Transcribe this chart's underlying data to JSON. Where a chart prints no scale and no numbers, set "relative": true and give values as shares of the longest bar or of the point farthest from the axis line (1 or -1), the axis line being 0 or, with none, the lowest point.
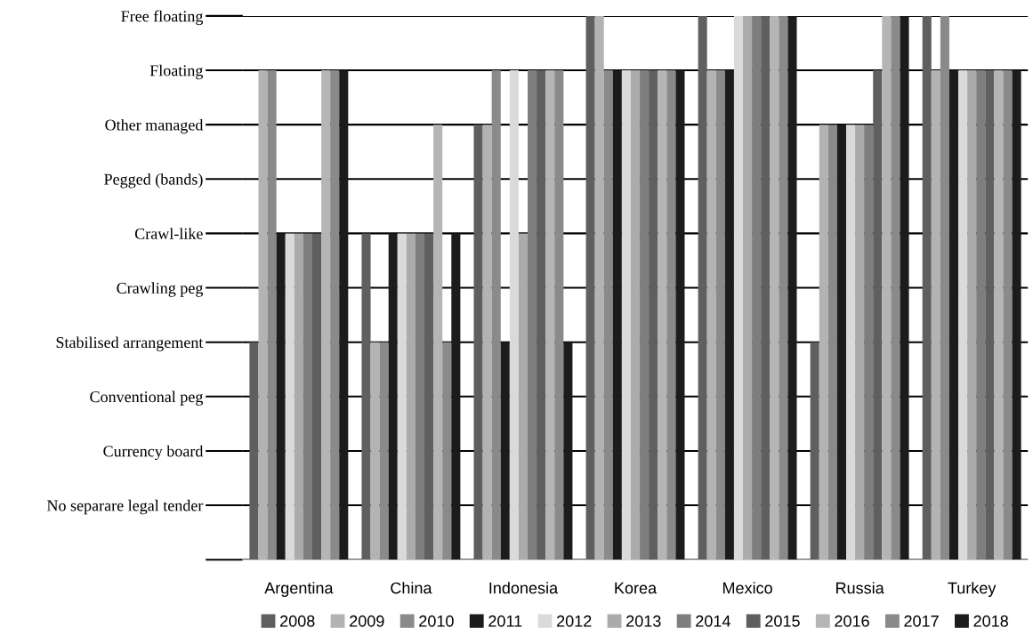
{
  "chart_data": {
    "type": "bar",
    "categories": [
      "Argentina",
      "China",
      "Indonesia",
      "Korea",
      "Mexico",
      "Russia",
      "Turkey"
    ],
    "series": [
      {
        "name": "2008",
        "color": "#5f5f5f",
        "values": [
          0.4,
          0.6,
          0.8,
          1,
          1,
          0.4,
          1
        ]
      },
      {
        "name": "2009",
        "color": "#b3b3b3",
        "values": [
          0.9,
          0.4,
          0.8,
          1,
          0.9,
          0.8,
          0.9
        ]
      },
      {
        "name": "2010",
        "color": "#8a8a8a",
        "values": [
          0.9,
          0.4,
          0.9,
          0.9,
          0.9,
          0.8,
          1
        ]
      },
      {
        "name": "2011",
        "color": "#1c1c1c",
        "values": [
          0.6,
          0.6,
          0.4,
          0.9,
          0.9,
          0.8,
          0.9
        ]
      },
      {
        "name": "2012",
        "color": "#dadada",
        "values": [
          0.6,
          0.6,
          0.9,
          0.9,
          1,
          0.8,
          0.9
        ]
      },
      {
        "name": "2013",
        "color": "#ababab",
        "values": [
          0.6,
          0.6,
          0.6,
          0.9,
          1,
          0.8,
          0.9
        ]
      },
      {
        "name": "2014",
        "color": "#7e7e7e",
        "values": [
          0.6,
          0.6,
          0.9,
          0.9,
          1,
          0.8,
          0.9
        ]
      },
      {
        "name": "2015",
        "color": "#5f5f5f",
        "values": [
          0.6,
          0.6,
          0.9,
          0.9,
          1,
          0.9,
          0.9
        ]
      },
      {
        "name": "2016",
        "color": "#b5b5b5",
        "values": [
          0.9,
          0.8,
          0.9,
          0.9,
          1,
          1,
          0.9
        ]
      },
      {
        "name": "2017",
        "color": "#8a8a8a",
        "values": [
          0.9,
          0.4,
          0.9,
          0.9,
          1,
          1,
          0.9
        ]
      },
      {
        "name": "2018",
        "color": "#1c1c1c",
        "values": [
          0.9,
          0.6,
          0.4,
          0.9,
          1,
          1,
          0.9
        ]
      }
    ],
    "relative": true,
    "annotations": [
      "No separare legal tender",
      "Currency board",
      "Conventional peg",
      "Stabilised arrangement",
      "Crawling peg",
      "Crawl-like",
      "Pegged (bands)",
      "Other managed",
      "Floating",
      "Free floating"
    ],
    "grid": "y",
    "legend": "bottom"
  }
}
